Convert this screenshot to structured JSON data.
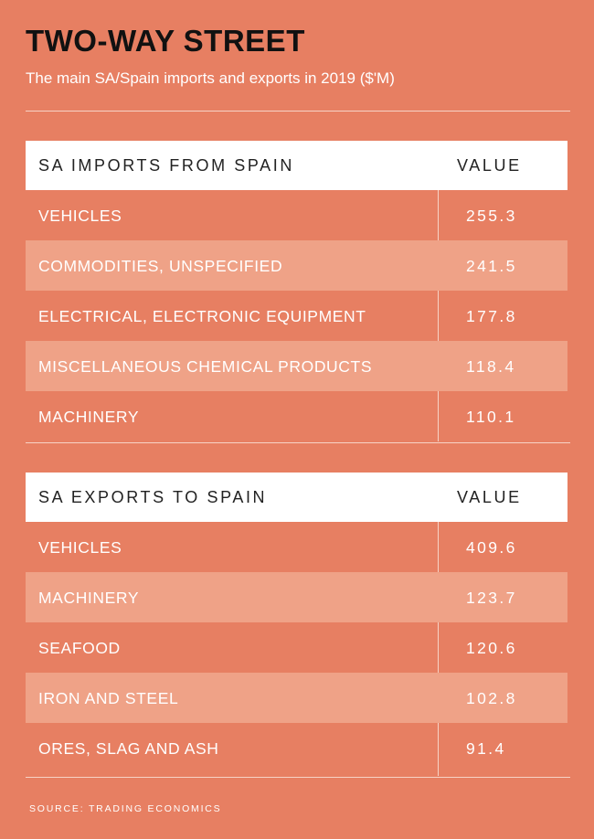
{
  "title": "TWO-WAY STREET",
  "subtitle": "The main SA/Spain imports and exports in 2019 ($'M)",
  "colors": {
    "background": "#e77f62",
    "alt_row": "#efa287",
    "header_bg": "#ffffff",
    "title": "#111111"
  },
  "chart_data": [
    {
      "type": "table",
      "columns": [
        "SA IMPORTS FROM SPAIN",
        "VALUE"
      ],
      "rows": [
        [
          "VEHICLES",
          "255.3"
        ],
        [
          "COMMODITIES, UNSPECIFIED",
          "241.5"
        ],
        [
          "ELECTRICAL, ELECTRONIC EQUIPMENT",
          "177.8"
        ],
        [
          "MISCELLANEOUS CHEMICAL PRODUCTS",
          "118.4"
        ],
        [
          "MACHINERY",
          "110.1"
        ]
      ]
    },
    {
      "type": "table",
      "columns": [
        "SA EXPORTS TO SPAIN",
        "VALUE"
      ],
      "rows": [
        [
          "VEHICLES",
          "409.6"
        ],
        [
          "MACHINERY",
          "123.7"
        ],
        [
          "SEAFOOD",
          "120.6"
        ],
        [
          "IRON AND STEEL",
          "102.8"
        ],
        [
          "ORES, SLAG AND ASH",
          "91.4"
        ]
      ]
    }
  ],
  "source": "SOURCE: TRADING ECONOMICS"
}
